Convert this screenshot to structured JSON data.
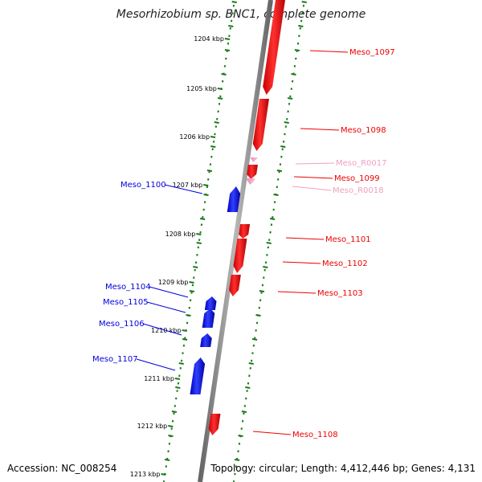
{
  "title": "Mesorhizobium sp. BNC1, complete genome",
  "footer": {
    "accession": "Accession: NC_008254",
    "topology": "Topology: circular; Length: 4,412,446 bp; Genes: 4,131"
  },
  "ruler": {
    "unit": "kbp",
    "ticks": [
      "1204 kbp",
      "1205 kbp",
      "1206 kbp",
      "1207 kbp",
      "1208 kbp",
      "1209 kbp",
      "1210 kbp",
      "1211 kbp",
      "1212 kbp",
      "1213 kbp"
    ]
  },
  "colors": {
    "forward": "#ee0000",
    "reverse": "#0000dd",
    "rna": "#f0a0c0",
    "backbone": "#888888",
    "tick": "#1a7a1a"
  },
  "genes": [
    {
      "name": "Meso_1097",
      "strand": "forward",
      "type": "CDS"
    },
    {
      "name": "Meso_1098",
      "strand": "forward",
      "type": "CDS"
    },
    {
      "name": "Meso_R0017",
      "strand": "forward",
      "type": "RNA"
    },
    {
      "name": "Meso_1099",
      "strand": "forward",
      "type": "CDS"
    },
    {
      "name": "Meso_R0018",
      "strand": "forward",
      "type": "RNA"
    },
    {
      "name": "Meso_1100",
      "strand": "reverse",
      "type": "CDS"
    },
    {
      "name": "Meso_1101",
      "strand": "forward",
      "type": "CDS"
    },
    {
      "name": "Meso_1102",
      "strand": "forward",
      "type": "CDS"
    },
    {
      "name": "Meso_1103",
      "strand": "forward",
      "type": "CDS"
    },
    {
      "name": "Meso_1104",
      "strand": "reverse",
      "type": "CDS"
    },
    {
      "name": "Meso_1105",
      "strand": "reverse",
      "type": "CDS"
    },
    {
      "name": "Meso_1106",
      "strand": "reverse",
      "type": "CDS"
    },
    {
      "name": "Meso_1107",
      "strand": "reverse",
      "type": "CDS"
    },
    {
      "name": "Meso_1108",
      "strand": "forward",
      "type": "CDS"
    }
  ]
}
